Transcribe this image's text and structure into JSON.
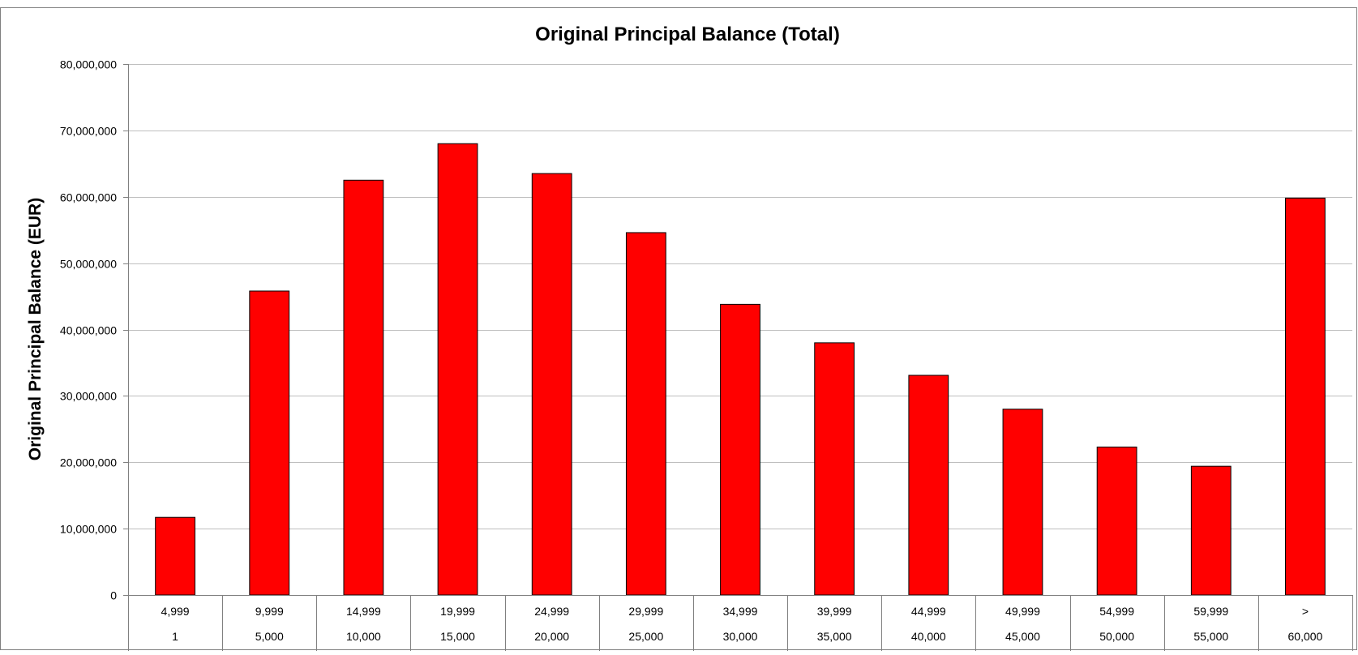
{
  "chart_data": {
    "type": "bar",
    "title": "Original Principal Balance (Total)",
    "xlabel": "",
    "ylabel": "Original Principal Balance (EUR)",
    "ylim": [
      0,
      80000000
    ],
    "y_ticks": [
      0,
      10000000,
      20000000,
      30000000,
      40000000,
      50000000,
      60000000,
      70000000,
      80000000
    ],
    "y_tick_labels": [
      "0",
      "10,000,000",
      "20,000,000",
      "30,000,000",
      "40,000,000",
      "50,000,000",
      "60,000,000",
      "70,000,000",
      "80,000,000"
    ],
    "categories": [
      {
        "upper": "4,999",
        "lower": "1"
      },
      {
        "upper": "9,999",
        "lower": "5,000"
      },
      {
        "upper": "14,999",
        "lower": "10,000"
      },
      {
        "upper": "19,999",
        "lower": "15,000"
      },
      {
        "upper": "24,999",
        "lower": "20,000"
      },
      {
        "upper": "29,999",
        "lower": "25,000"
      },
      {
        "upper": "34,999",
        "lower": "30,000"
      },
      {
        "upper": "39,999",
        "lower": "35,000"
      },
      {
        "upper": "44,999",
        "lower": "40,000"
      },
      {
        "upper": "49,999",
        "lower": "45,000"
      },
      {
        "upper": "54,999",
        "lower": "50,000"
      },
      {
        "upper": "59,999",
        "lower": "55,000"
      },
      {
        "upper": ">",
        "lower": "60,000"
      }
    ],
    "values": [
      11700000,
      45800000,
      62500000,
      68000000,
      63500000,
      54600000,
      43800000,
      38000000,
      33100000,
      28000000,
      22300000,
      19400000,
      59800000
    ],
    "grid": true,
    "legend": "none",
    "colors": {
      "bar_fill": "#ff0000",
      "bar_stroke": "#000000",
      "grid": "#bfbfbf",
      "axis": "#808080",
      "border": "#808080"
    }
  }
}
